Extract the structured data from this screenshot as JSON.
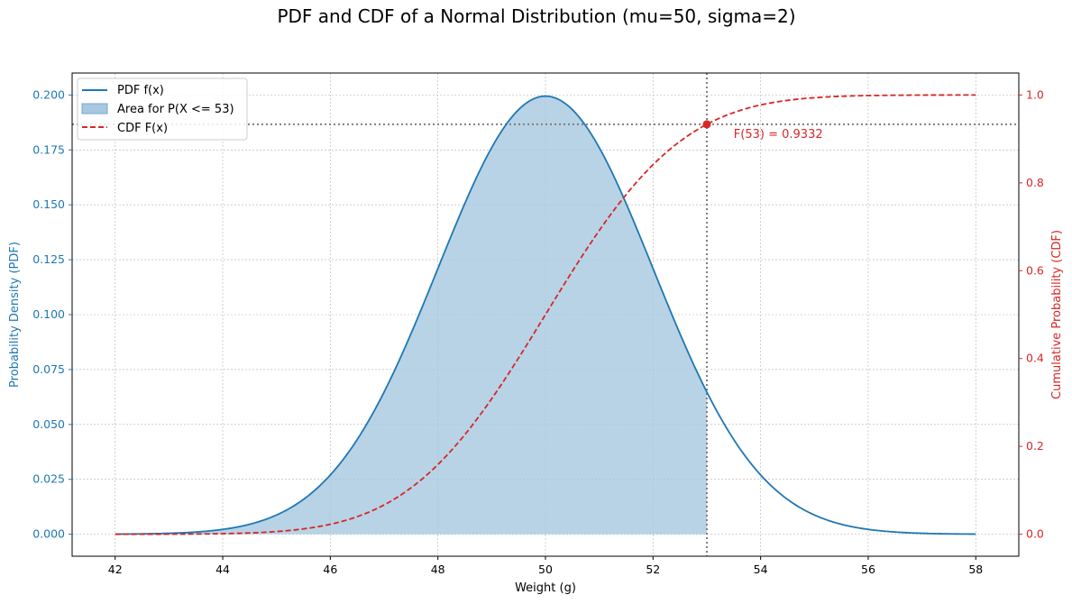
{
  "chart_data": {
    "type": "line",
    "title": "PDF and CDF of a Normal Distribution (mu=50, sigma=2)",
    "xlabel": "Weight (g)",
    "ylabel_left": "Probability Density (PDF)",
    "ylabel_right": "Cumulative Probability (CDF)",
    "xlim": [
      41.2,
      58.8
    ],
    "ylim_left": [
      -0.01,
      0.21
    ],
    "ylim_right": [
      -0.05,
      1.05
    ],
    "x_ticks": [
      42,
      44,
      46,
      48,
      50,
      52,
      54,
      56,
      58
    ],
    "x_tick_labels": [
      "42",
      "44",
      "46",
      "48",
      "50",
      "52",
      "54",
      "56",
      "58"
    ],
    "y_left_ticks": [
      0,
      0.025,
      0.05,
      0.075,
      0.1,
      0.125,
      0.15,
      0.175,
      0.2
    ],
    "y_left_tick_labels": [
      "0.000",
      "0.025",
      "0.050",
      "0.075",
      "0.100",
      "0.125",
      "0.150",
      "0.175",
      "0.200"
    ],
    "y_right_ticks": [
      0,
      0.2,
      0.4,
      0.6,
      0.8,
      1.0
    ],
    "y_right_tick_labels": [
      "0.0",
      "0.2",
      "0.4",
      "0.6",
      "0.8",
      "1.0"
    ],
    "grid": true,
    "legend_position": "top-left",
    "x": [
      42,
      42.5,
      43,
      43.5,
      44,
      44.5,
      45,
      45.5,
      46,
      46.5,
      47,
      47.5,
      48,
      48.5,
      49,
      49.5,
      50,
      50.5,
      51,
      51.5,
      52,
      52.5,
      53,
      53.5,
      54,
      54.5,
      55,
      55.5,
      56,
      56.5,
      57,
      57.5,
      58
    ],
    "series": [
      {
        "name": "PDF f(x)",
        "axis": "left",
        "style": "solid",
        "values": [
          7e-05,
          0.00022,
          0.00066,
          0.00175,
          0.00443,
          0.01003,
          0.0088,
          0.01588,
          0.027,
          0.0431,
          0.0648,
          0.0913,
          0.121,
          0.1506,
          0.176,
          0.1933,
          0.1995,
          0.1933,
          0.176,
          0.1506,
          0.121,
          0.0913,
          0.0648,
          0.0431,
          0.027,
          0.01588,
          0.0088,
          0.00457,
          0.00222,
          0.00101,
          0.00044,
          0.00018,
          7e-05
        ]
      },
      {
        "name": "CDF F(x)",
        "axis": "right",
        "style": "dashed",
        "values": [
          3e-05,
          0.00012,
          0.00023,
          0.00069,
          0.00135,
          0.00347,
          0.00621,
          0.01222,
          0.02275,
          0.04006,
          0.06681,
          0.10565,
          0.15866,
          0.22663,
          0.30854,
          0.40129,
          0.5,
          0.59871,
          0.69146,
          0.77337,
          0.84134,
          0.89435,
          0.93319,
          0.95994,
          0.97725,
          0.98778,
          0.99379,
          0.99702,
          0.99865,
          0.99942,
          0.99977,
          0.99991,
          0.99997
        ]
      }
    ],
    "shaded_area": {
      "name": "Area for P(X <= 53)",
      "x_from": 42,
      "x_to": 53
    },
    "reference_lines": {
      "x": 53,
      "y_right": 0.9332
    },
    "marker": {
      "x": 53,
      "y": 0.9332,
      "axis": "right"
    },
    "annotation": {
      "text": "F(53) = 0.9332",
      "x": 53.5,
      "y": 0.91,
      "axis": "right"
    },
    "mu": 50,
    "sigma": 2,
    "colors": {
      "pdf": "#1f77b4",
      "cdf": "#d62728",
      "fill": "#a6c8e0",
      "ref": "#7f7f7f",
      "grid": "#b0b0b0"
    }
  }
}
